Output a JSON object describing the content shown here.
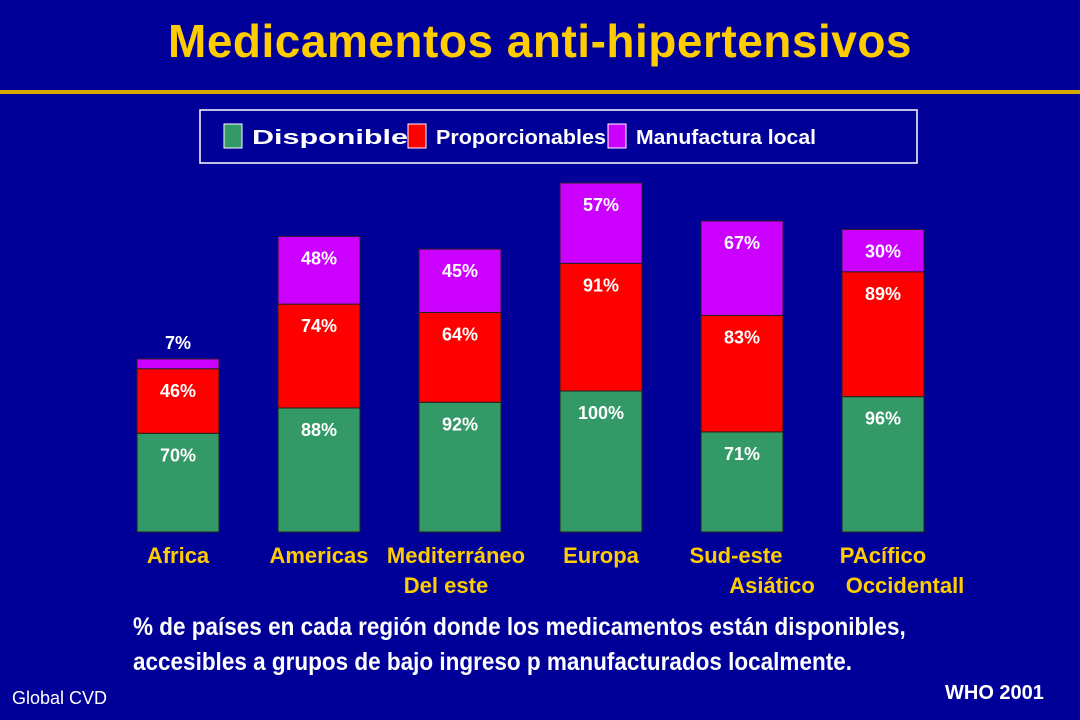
{
  "title": "Medicamentos anti-hipertensivos",
  "caption": {
    "line1": "% de países en cada región donde los medicamentos están disponibles,",
    "line2": "accesibles a grupos de bajo ingreso p manufacturados localmente."
  },
  "footer": {
    "left": "Global CVD",
    "right": "WHO 2001"
  },
  "colors": {
    "disponible": "#339966",
    "proporcionables": "#ff0000",
    "manufactura": "#cc00ff",
    "title": "#ffcc00",
    "background": "#000099"
  },
  "chart_data": {
    "type": "bar",
    "stacked": true,
    "legend_position": "top",
    "categories": [
      [
        "Africa"
      ],
      [
        "Americas"
      ],
      [
        "Mediterráneo",
        "Del este"
      ],
      [
        "Europa"
      ],
      [
        "Sud-este",
        "Asiático"
      ],
      [
        "PAcífico",
        "Occidentall"
      ]
    ],
    "series": [
      {
        "name": "Disponible",
        "color": "#339966",
        "values": [
          70,
          88,
          92,
          100,
          71,
          96
        ],
        "labels": [
          "70%",
          "88%",
          "92%",
          "100%",
          "71%",
          "96%"
        ]
      },
      {
        "name": "Proporcionables",
        "color": "#ff0000",
        "values": [
          46,
          74,
          64,
          91,
          83,
          89
        ],
        "labels": [
          "46%",
          "74%",
          "64%",
          "91%",
          "83%",
          "89%"
        ]
      },
      {
        "name": "Manufactura local",
        "color": "#cc00ff",
        "values": [
          7,
          48,
          45,
          57,
          67,
          30
        ],
        "labels": [
          "7%",
          "48%",
          "45%",
          "57%",
          "67%",
          "30%"
        ]
      }
    ]
  }
}
